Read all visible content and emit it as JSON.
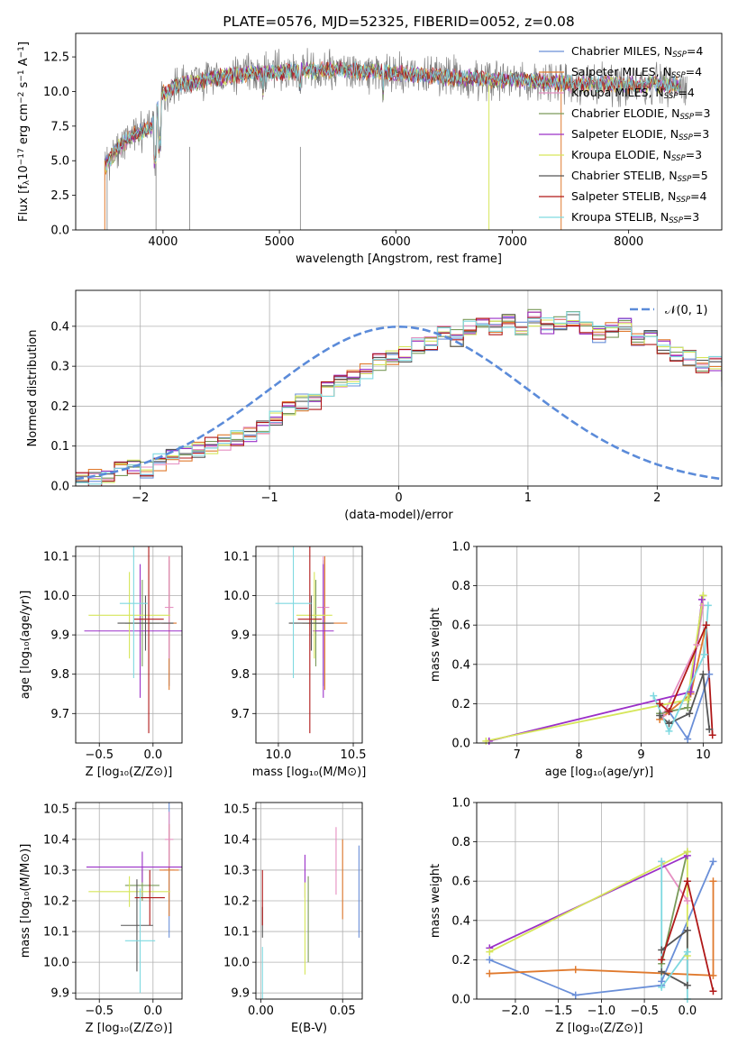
{
  "colors": {
    "chabrier_miles": "#6a8fd8",
    "salpeter_miles": "#e07a2e",
    "kroupa_miles": "#e58fc2",
    "chabrier_elodie": "#7a9a5a",
    "salpeter_elodie": "#9b30c8",
    "kroupa_elodie": "#d6e65a",
    "chabrier_stelib": "#555555",
    "salpeter_stelib": "#b01818",
    "kroupa_stelib": "#7fd9e0",
    "normal": "#5b8bd9",
    "spectrum_data": "#808080"
  },
  "chart_data": [
    {
      "id": "spectrum",
      "type": "line",
      "title": "PLATE=0576, MJD=52325, FIBERID=0052, z=0.08",
      "xlabel": "wavelength [Angstrom, rest frame]",
      "ylabel": "Flux [f_λ 10^{-17} erg cm^{-2} s^{-1} A^{-1}]",
      "xlim": [
        3250,
        8800
      ],
      "ylim": [
        0,
        14.2
      ],
      "xticks": [
        "4000",
        "5000",
        "6000",
        "7000",
        "8000"
      ],
      "xtick_values": [
        4000,
        5000,
        6000,
        7000,
        8000
      ],
      "yticks": [
        "0.0",
        "2.5",
        "5.0",
        "7.5",
        "10.0",
        "12.5"
      ],
      "ytick_values": [
        0,
        2.5,
        5,
        7.5,
        10,
        12.5
      ],
      "legend_position": "right",
      "legend": [
        {
          "key": "chabrier_miles",
          "label": "Chabrier MILES, N",
          "sub": "SSP",
          "tail": "=4"
        },
        {
          "key": "salpeter_miles",
          "label": "Salpeter MILES, N",
          "sub": "SSP",
          "tail": "=4"
        },
        {
          "key": "kroupa_miles",
          "label": "Kroupa MILES, N",
          "sub": "SSP",
          "tail": "=4"
        },
        {
          "key": "chabrier_elodie",
          "label": "Chabrier ELODIE, N",
          "sub": "SSP",
          "tail": "=3"
        },
        {
          "key": "salpeter_elodie",
          "label": "Salpeter ELODIE, N",
          "sub": "SSP",
          "tail": "=3"
        },
        {
          "key": "kroupa_elodie",
          "label": "Kroupa ELODIE, N",
          "sub": "SSP",
          "tail": "=3"
        },
        {
          "key": "chabrier_stelib",
          "label": "Chabrier STELIB, N",
          "sub": "SSP",
          "tail": "=5"
        },
        {
          "key": "salpeter_stelib",
          "label": "Salpeter STELIB, N",
          "sub": "SSP",
          "tail": "=4"
        },
        {
          "key": "kroupa_stelib",
          "label": "Kroupa STELIB, N",
          "sub": "SSP",
          "tail": "=3"
        }
      ],
      "continuum": {
        "x": [
          3500,
          3600,
          3700,
          3800,
          3900,
          4000,
          4100,
          4200,
          4400,
          4600,
          4800,
          5000,
          5500,
          6000,
          6500,
          7000,
          7500,
          8000,
          8500
        ],
        "y": [
          4.5,
          5.8,
          6.6,
          7.0,
          7.4,
          9.8,
          10.4,
          10.6,
          10.9,
          11.2,
          11.3,
          11.4,
          11.6,
          11.3,
          11.0,
          10.8,
          10.6,
          10.5,
          10.5
        ]
      }
    },
    {
      "id": "residuals",
      "type": "step",
      "xlabel": "(data-model)/error",
      "ylabel": "Normed distribution",
      "xlim": [
        -2.5,
        2.5
      ],
      "ylim": [
        0,
        0.49
      ],
      "xticks": [
        "−2",
        "−1",
        "0",
        "1",
        "2"
      ],
      "xtick_values": [
        -2,
        -1,
        0,
        1,
        2
      ],
      "yticks": [
        "0.0",
        "0.1",
        "0.2",
        "0.3",
        "0.4"
      ],
      "ytick_values": [
        0,
        0.1,
        0.2,
        0.3,
        0.4
      ],
      "grid": true,
      "legend_position": "top-right",
      "legend_label": "𝒩(0, 1)",
      "bin_width": 0.1,
      "bin_start": -2.5,
      "base_hist": [
        0.02,
        0.02,
        0.03,
        0.04,
        0.05,
        0.04,
        0.06,
        0.07,
        0.08,
        0.09,
        0.1,
        0.11,
        0.12,
        0.13,
        0.15,
        0.17,
        0.19,
        0.21,
        0.21,
        0.24,
        0.26,
        0.27,
        0.29,
        0.31,
        0.32,
        0.33,
        0.35,
        0.36,
        0.38,
        0.37,
        0.4,
        0.41,
        0.4,
        0.41,
        0.4,
        0.42,
        0.4,
        0.41,
        0.42,
        0.39,
        0.38,
        0.39,
        0.4,
        0.37,
        0.37,
        0.35,
        0.33,
        0.32,
        0.3,
        0.31,
        0.27,
        0.29,
        0.27,
        0.25,
        0.24,
        0.23,
        0.22,
        0.21,
        0.19,
        0.17,
        0.16,
        0.14,
        0.12,
        0.11,
        0.1,
        0.09,
        0.08,
        0.07,
        0.06,
        0.05,
        0.04,
        0.03,
        0.02,
        0.02,
        0.02
      ],
      "order": [
        "chabrier_miles",
        "salpeter_miles",
        "kroupa_miles",
        "chabrier_elodie",
        "salpeter_elodie",
        "kroupa_elodie",
        "chabrier_stelib",
        "salpeter_stelib",
        "kroupa_stelib"
      ]
    },
    {
      "id": "z_age",
      "type": "errorbar",
      "xlabel": "Z [log₁₀(Z/Z⊙)]",
      "ylabel": "age [log₁₀(age/yr)]",
      "xlim": [
        -0.72,
        0.27
      ],
      "ylim": [
        9.625,
        10.125
      ],
      "xticks": [
        "−0.5",
        "0.0"
      ],
      "xtick_values": [
        -0.5,
        0.0
      ],
      "yticks": [
        "9.7",
        "9.8",
        "9.9",
        "10.0",
        "10.1"
      ],
      "ytick_values": [
        9.7,
        9.8,
        9.9,
        10.0,
        10.1
      ],
      "grid": true,
      "points": [
        {
          "key": "chabrier_miles",
          "x": 0.15,
          "y": 9.93,
          "xerr": 0.05,
          "yerr": 0.16
        },
        {
          "key": "salpeter_miles",
          "x": 0.15,
          "y": 9.93,
          "xerr": 0.07,
          "yerr": 0.17
        },
        {
          "key": "kroupa_miles",
          "x": 0.15,
          "y": 9.97,
          "xerr": 0.04,
          "yerr": 0.13
        },
        {
          "key": "chabrier_elodie",
          "x": -0.1,
          "y": 9.93,
          "xerr": 0.16,
          "yerr": 0.11
        },
        {
          "key": "salpeter_elodie",
          "x": -0.12,
          "y": 9.91,
          "xerr": 0.52,
          "yerr": 0.17
        },
        {
          "key": "kroupa_elodie",
          "x": -0.22,
          "y": 9.95,
          "xerr": 0.38,
          "yerr": 0.11
        },
        {
          "key": "chabrier_stelib",
          "x": -0.07,
          "y": 9.93,
          "xerr": 0.26,
          "yerr": 0.07
        },
        {
          "key": "salpeter_stelib",
          "x": -0.04,
          "y": 9.94,
          "xerr": 0.14,
          "yerr": 0.29
        },
        {
          "key": "kroupa_stelib",
          "x": -0.18,
          "y": 9.98,
          "xerr": 0.13,
          "yerr": 0.19
        }
      ]
    },
    {
      "id": "mass_age",
      "type": "errorbar",
      "xlabel": "mass [log₁₀(M/M⊙)]",
      "ylabel": "",
      "xlim": [
        9.85,
        10.56
      ],
      "ylim": [
        9.625,
        10.125
      ],
      "xticks": [
        "10.0",
        "10.5"
      ],
      "xtick_values": [
        10.0,
        10.5
      ],
      "yticks": [
        "9.7",
        "9.8",
        "9.9",
        "10.0",
        "10.1"
      ],
      "ytick_values": [
        9.7,
        9.8,
        9.9,
        10.0,
        10.1
      ],
      "grid": true,
      "points": [
        {
          "key": "chabrier_miles",
          "x": 10.3,
          "y": 9.93,
          "xerr": 0.05,
          "yerr": 0.16
        },
        {
          "key": "salpeter_miles",
          "x": 10.31,
          "y": 9.93,
          "xerr": 0.15,
          "yerr": 0.17
        },
        {
          "key": "kroupa_miles",
          "x": 10.3,
          "y": 9.97,
          "xerr": 0.04,
          "yerr": 0.13
        },
        {
          "key": "chabrier_elodie",
          "x": 10.25,
          "y": 9.93,
          "xerr": 0.06,
          "yerr": 0.11
        },
        {
          "key": "salpeter_elodie",
          "x": 10.3,
          "y": 9.91,
          "xerr": 0.07,
          "yerr": 0.17
        },
        {
          "key": "kroupa_elodie",
          "x": 10.24,
          "y": 9.95,
          "xerr": 0.12,
          "yerr": 0.11
        },
        {
          "key": "chabrier_stelib",
          "x": 10.22,
          "y": 9.93,
          "xerr": 0.15,
          "yerr": 0.07
        },
        {
          "key": "salpeter_stelib",
          "x": 10.21,
          "y": 9.94,
          "xerr": 0.08,
          "yerr": 0.29
        },
        {
          "key": "kroupa_stelib",
          "x": 10.1,
          "y": 9.98,
          "xerr": 0.12,
          "yerr": 0.19
        }
      ]
    },
    {
      "id": "age_weight",
      "type": "line",
      "xlabel": "age [log₁₀(age/yr)]",
      "ylabel": "mass weight",
      "xlim": [
        6.35,
        10.3
      ],
      "ylim": [
        0,
        1.0
      ],
      "xticks": [
        "7",
        "8",
        "9",
        "10"
      ],
      "xtick_values": [
        7,
        8,
        9,
        10
      ],
      "yticks": [
        "0.0",
        "0.2",
        "0.4",
        "0.6",
        "0.8",
        "1.0"
      ],
      "ytick_values": [
        0,
        0.2,
        0.4,
        0.6,
        0.8,
        1.0
      ],
      "grid": true,
      "series": [
        {
          "key": "chabrier_miles",
          "x": [
            9.45,
            9.75,
            10.1
          ],
          "y": [
            0.16,
            0.02,
            0.35
          ]
        },
        {
          "key": "salpeter_miles",
          "x": [
            9.3,
            9.8,
            10.05
          ],
          "y": [
            0.12,
            0.25,
            0.6
          ]
        },
        {
          "key": "kroupa_miles",
          "x": [
            9.35,
            9.9,
            10.0
          ],
          "y": [
            0.14,
            0.5,
            0.7
          ]
        },
        {
          "key": "chabrier_elodie",
          "x": [
            9.3,
            9.75,
            10.0
          ],
          "y": [
            0.15,
            0.18,
            0.75
          ]
        },
        {
          "key": "salpeter_elodie",
          "x": [
            6.55,
            9.8,
            9.98
          ],
          "y": [
            0.01,
            0.26,
            0.73
          ]
        },
        {
          "key": "kroupa_elodie",
          "x": [
            6.5,
            9.75,
            10.0
          ],
          "y": [
            0.01,
            0.22,
            0.75
          ]
        },
        {
          "key": "chabrier_stelib",
          "x": [
            9.3,
            9.45,
            9.78,
            10.0,
            10.1
          ],
          "y": [
            0.14,
            0.1,
            0.15,
            0.35,
            0.07
          ]
        },
        {
          "key": "salpeter_stelib",
          "x": [
            9.3,
            9.45,
            10.05,
            10.15
          ],
          "y": [
            0.2,
            0.16,
            0.6,
            0.04
          ]
        },
        {
          "key": "kroupa_stelib",
          "x": [
            9.2,
            9.45,
            10.02,
            10.08
          ],
          "y": [
            0.24,
            0.06,
            0.45,
            0.7
          ]
        }
      ]
    },
    {
      "id": "z_mass",
      "type": "errorbar",
      "xlabel": "Z [log₁₀(Z/Z⊙)]",
      "ylabel": "mass [log₁₀(M/M⊙)]",
      "xlim": [
        -0.72,
        0.27
      ],
      "ylim": [
        9.88,
        10.52
      ],
      "xticks": [
        "−0.5",
        "0.0"
      ],
      "xtick_values": [
        -0.5,
        0.0
      ],
      "yticks": [
        "9.9",
        "10.0",
        "10.1",
        "10.2",
        "10.3",
        "10.4",
        "10.5"
      ],
      "ytick_values": [
        9.9,
        10.0,
        10.1,
        10.2,
        10.3,
        10.4,
        10.5
      ],
      "grid": true,
      "points": [
        {
          "key": "chabrier_miles",
          "x": 0.15,
          "y": 10.3,
          "xerr": 0.05,
          "yerr": 0.22
        },
        {
          "key": "salpeter_miles",
          "x": 0.15,
          "y": 10.3,
          "xerr": 0.09,
          "yerr": 0.15
        },
        {
          "key": "kroupa_miles",
          "x": 0.15,
          "y": 10.4,
          "xerr": 0.04,
          "yerr": 0.09
        },
        {
          "key": "chabrier_elodie",
          "x": -0.1,
          "y": 10.25,
          "xerr": 0.16,
          "yerr": 0.05
        },
        {
          "key": "salpeter_elodie",
          "x": -0.1,
          "y": 10.31,
          "xerr": 0.52,
          "yerr": 0.05
        },
        {
          "key": "kroupa_elodie",
          "x": -0.22,
          "y": 10.23,
          "xerr": 0.38,
          "yerr": 0.05
        },
        {
          "key": "chabrier_stelib",
          "x": -0.15,
          "y": 10.12,
          "xerr": 0.15,
          "yerr": 0.15
        },
        {
          "key": "salpeter_stelib",
          "x": -0.03,
          "y": 10.21,
          "xerr": 0.14,
          "yerr": 0.09
        },
        {
          "key": "kroupa_stelib",
          "x": -0.12,
          "y": 10.07,
          "xerr": 0.14,
          "yerr": 0.17
        }
      ]
    },
    {
      "id": "ebv_mass",
      "type": "errorbar",
      "xlabel": "E(B-V)",
      "ylabel": "",
      "xlim": [
        -0.003,
        0.062
      ],
      "ylim": [
        9.88,
        10.52
      ],
      "xticks": [
        "0.00",
        "0.05"
      ],
      "xtick_values": [
        0.0,
        0.05
      ],
      "yticks": [
        "9.9",
        "10.0",
        "10.1",
        "10.2",
        "10.3",
        "10.4",
        "10.5"
      ],
      "ytick_values": [
        9.9,
        10.0,
        10.1,
        10.2,
        10.3,
        10.4,
        10.5
      ],
      "grid": true,
      "points": [
        {
          "key": "chabrier_miles",
          "x": 0.06,
          "y": 10.23,
          "xerr": 0,
          "yerr": 0.15
        },
        {
          "key": "salpeter_miles",
          "x": 0.05,
          "y": 10.27,
          "xerr": 0,
          "yerr": 0.13
        },
        {
          "key": "kroupa_miles",
          "x": 0.046,
          "y": 10.33,
          "xerr": 0,
          "yerr": 0.11
        },
        {
          "key": "chabrier_elodie",
          "x": 0.029,
          "y": 10.14,
          "xerr": 0,
          "yerr": 0.14
        },
        {
          "key": "salpeter_elodie",
          "x": 0.027,
          "y": 10.28,
          "xerr": 0,
          "yerr": 0.07
        },
        {
          "key": "kroupa_elodie",
          "x": 0.027,
          "y": 10.11,
          "xerr": 0,
          "yerr": 0.15
        },
        {
          "key": "chabrier_stelib",
          "x": 0.001,
          "y": 10.13,
          "xerr": 0,
          "yerr": 0.05
        },
        {
          "key": "salpeter_stelib",
          "x": 0.001,
          "y": 10.21,
          "xerr": 0,
          "yerr": 0.09
        },
        {
          "key": "kroupa_stelib",
          "x": 0.001,
          "y": 9.95,
          "xerr": 0,
          "yerr": 0.1
        }
      ]
    },
    {
      "id": "z_weight",
      "type": "line",
      "xlabel": "Z [log₁₀(Z/Z⊙)]",
      "ylabel": "mass weight",
      "xlim": [
        -2.45,
        0.4
      ],
      "ylim": [
        0,
        1.0
      ],
      "xticks": [
        "−2.0",
        "−1.5",
        "−1.0",
        "−0.5",
        "0.0"
      ],
      "xtick_values": [
        -2.0,
        -1.5,
        -1.0,
        -0.5,
        0.0
      ],
      "yticks": [
        "0.0",
        "0.2",
        "0.4",
        "0.6",
        "0.8",
        "1.0"
      ],
      "ytick_values": [
        0,
        0.2,
        0.4,
        0.6,
        0.8,
        1.0
      ],
      "grid": true,
      "series": [
        {
          "key": "chabrier_miles",
          "x": [
            -2.3,
            -1.3,
            -0.3,
            -0.3,
            0.3
          ],
          "y": [
            0.2,
            0.02,
            0.07,
            0.09,
            0.7
          ]
        },
        {
          "key": "salpeter_miles",
          "x": [
            -2.3,
            -1.3,
            0.3,
            0.3
          ],
          "y": [
            0.13,
            0.15,
            0.12,
            0.6
          ]
        },
        {
          "key": "kroupa_miles",
          "x": [
            -0.3,
            0.0
          ],
          "y": [
            0.7,
            0.5
          ]
        },
        {
          "key": "chabrier_elodie",
          "x": [
            -0.3,
            0.0
          ],
          "y": [
            0.18,
            0.75
          ]
        },
        {
          "key": "salpeter_elodie",
          "x": [
            -2.3,
            0.0
          ],
          "y": [
            0.26,
            0.73
          ]
        },
        {
          "key": "kroupa_elodie",
          "x": [
            -2.3,
            0.0,
            0.0
          ],
          "y": [
            0.24,
            0.75,
            0.22
          ]
        },
        {
          "key": "chabrier_stelib",
          "x": [
            -0.3,
            0.0,
            0.0,
            -0.3
          ],
          "y": [
            0.25,
            0.35,
            0.07,
            0.14
          ]
        },
        {
          "key": "salpeter_stelib",
          "x": [
            -0.3,
            0.0,
            0.3
          ],
          "y": [
            0.2,
            0.6,
            0.04
          ]
        },
        {
          "key": "kroupa_stelib",
          "x": [
            -0.3,
            -0.3,
            0.0,
            0.0
          ],
          "y": [
            0.7,
            0.06,
            0.24,
            0.0
          ]
        }
      ]
    }
  ]
}
